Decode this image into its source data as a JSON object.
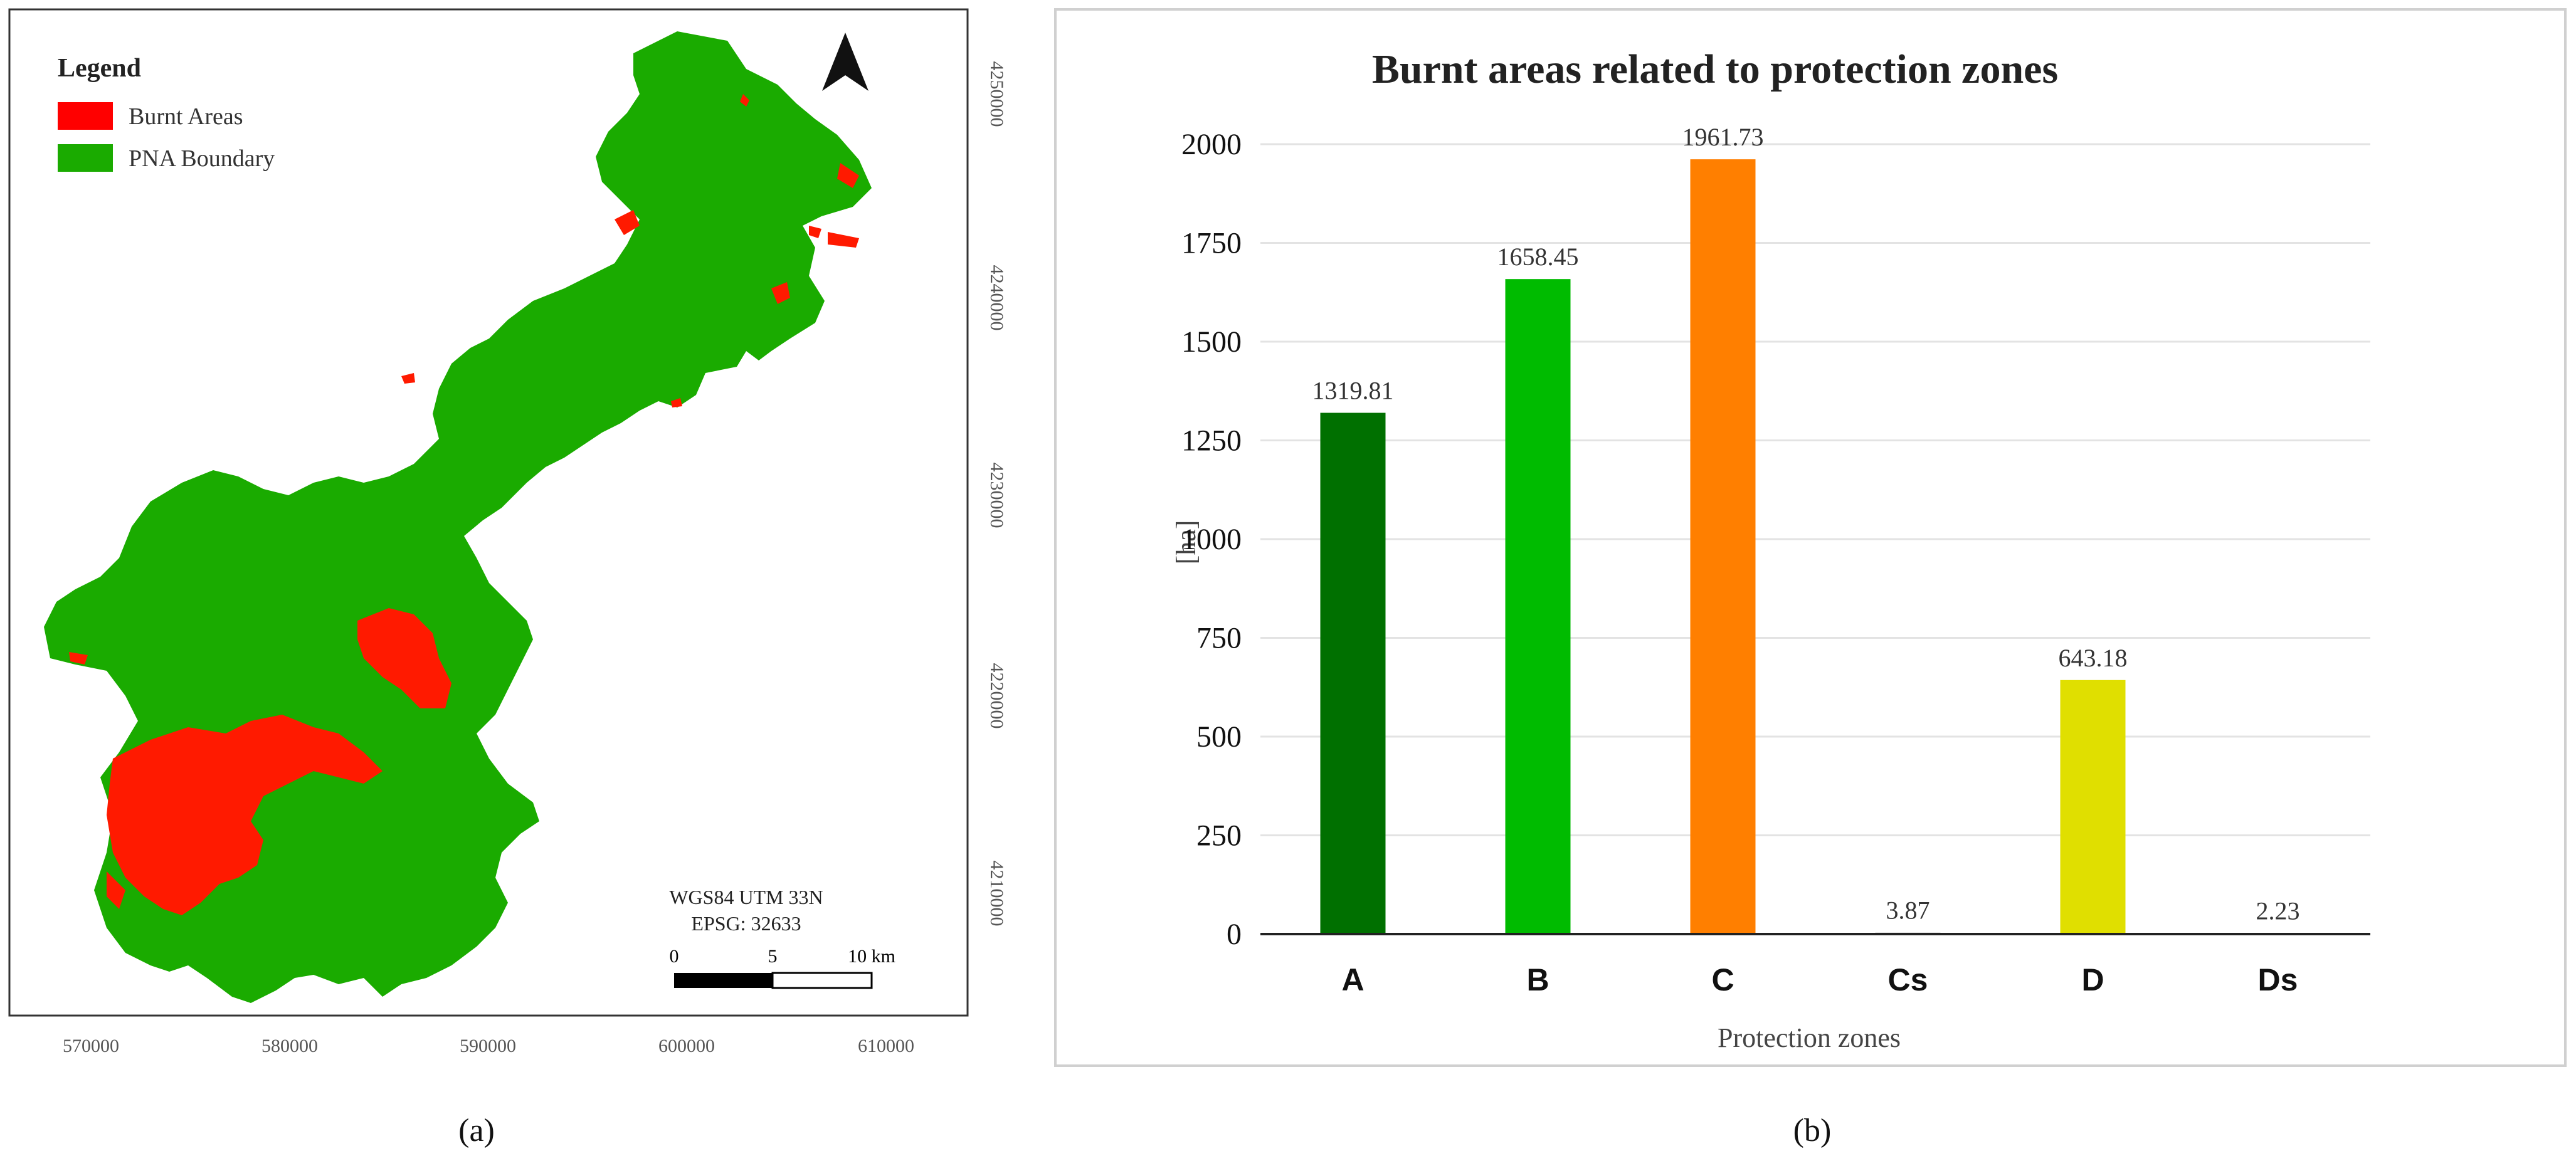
{
  "panel_a": {
    "caption": "(a)",
    "legend": {
      "title": "Legend",
      "items": [
        {
          "label": "Burnt Areas",
          "color": "#ff0000"
        },
        {
          "label": "PNA Boundary",
          "color": "#1aab00"
        }
      ]
    },
    "projection_line1": "WGS84 UTM 33N",
    "projection_line2": "EPSG: 32633",
    "scale_bar": {
      "labels": [
        "0",
        "5",
        "10 km"
      ]
    },
    "x_ticks": [
      "570000",
      "580000",
      "590000",
      "600000",
      "610000"
    ],
    "y_ticks": [
      "4250000",
      "4240000",
      "4230000",
      "4220000",
      "4210000"
    ],
    "north_arrow": "north-arrow-icon"
  },
  "panel_b": {
    "caption": "(b)"
  },
  "chart_data": {
    "type": "bar",
    "title": "Burnt areas related to protection zones",
    "xlabel": "Protection zones",
    "ylabel": "[ha]",
    "categories": [
      "A",
      "B",
      "C",
      "Cs",
      "D",
      "Ds"
    ],
    "values": [
      1319.81,
      1658.45,
      1961.73,
      3.87,
      643.18,
      2.23
    ],
    "value_labels": [
      "1319.81",
      "1658.45",
      "1961.73",
      "3.87",
      "643.18",
      "2.23"
    ],
    "colors": [
      "#007000",
      "#00bb00",
      "#ff7f00",
      "#cccccc",
      "#e0df00",
      "#cccccc"
    ],
    "ylim": [
      0,
      2000
    ],
    "yticks": [
      0,
      250,
      500,
      750,
      1000,
      1250,
      1500,
      1750,
      2000
    ],
    "ytick_labels": [
      "0",
      "250",
      "500",
      "750",
      "1000",
      "1250",
      "1500",
      "1750",
      "2000"
    ],
    "grid": true,
    "legend": "none"
  }
}
